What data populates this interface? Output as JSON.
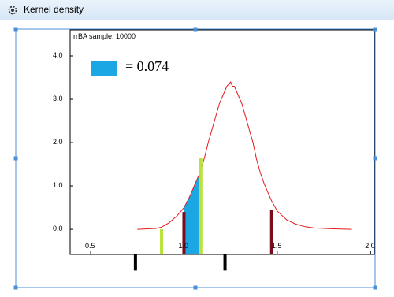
{
  "window": {
    "title": "Kernel density",
    "icon": "gear-icon"
  },
  "plot": {
    "sample_label": "rrBA sample: 10000",
    "legend_value_text": "= 0.074",
    "colors": {
      "curve": "#e31a1c",
      "shaded": "#1ba7e3",
      "green_marker": "#b7e33a",
      "dark_red_marker": "#7a0c1c",
      "black_marker": "#000000",
      "selection": "#4b8fd6"
    }
  },
  "chart_data": {
    "type": "line",
    "y_ticks": [
      "0.0",
      "1.0",
      "2.0",
      "3.0",
      "4.0"
    ],
    "x_ticks": [
      "0.5",
      "1.0",
      "1.5",
      "2.0"
    ],
    "xlim": [
      0.39,
      2.02
    ],
    "ylim": [
      -0.58,
      4.6
    ],
    "series": [
      {
        "x": [
          0.75,
          0.85,
          0.88,
          0.92,
          0.96,
          1.0,
          1.03,
          1.05,
          1.07,
          1.09,
          1.11,
          1.13,
          1.15,
          1.17,
          1.19,
          1.21,
          1.23,
          1.25,
          1.26,
          1.27,
          1.29,
          1.31,
          1.33,
          1.35,
          1.37,
          1.39,
          1.41,
          1.43,
          1.45,
          1.47,
          1.5,
          1.55,
          1.6,
          1.65,
          1.7,
          1.8,
          1.9
        ],
        "y": [
          0.0,
          0.02,
          0.05,
          0.15,
          0.3,
          0.5,
          0.75,
          0.95,
          1.15,
          1.35,
          1.65,
          2.0,
          2.3,
          2.6,
          2.9,
          3.1,
          3.3,
          3.4,
          3.3,
          3.3,
          3.1,
          2.9,
          2.6,
          2.3,
          2.0,
          1.6,
          1.3,
          1.05,
          0.85,
          0.65,
          0.42,
          0.22,
          0.12,
          0.06,
          0.03,
          0.01,
          0.0
        ]
      }
    ],
    "shaded_region": {
      "x_from": 1.0,
      "x_to": 1.09,
      "label": "= 0.074"
    },
    "markers": [
      {
        "x": 0.88,
        "color": "#b7e33a",
        "from": -0.58,
        "to": 0.0
      },
      {
        "x": 1.0,
        "color": "#7a0c1c",
        "from": -0.58,
        "to": 0.4
      },
      {
        "x": 1.09,
        "color": "#b7e33a",
        "from": -0.58,
        "to": 1.65
      },
      {
        "x": 1.47,
        "color": "#7a0c1c",
        "from": -0.58,
        "to": 0.45
      },
      {
        "x": 0.74,
        "color": "#000000",
        "from": -0.58,
        "to": -0.95
      },
      {
        "x": 1.22,
        "color": "#000000",
        "from": -0.58,
        "to": -0.95
      }
    ]
  }
}
